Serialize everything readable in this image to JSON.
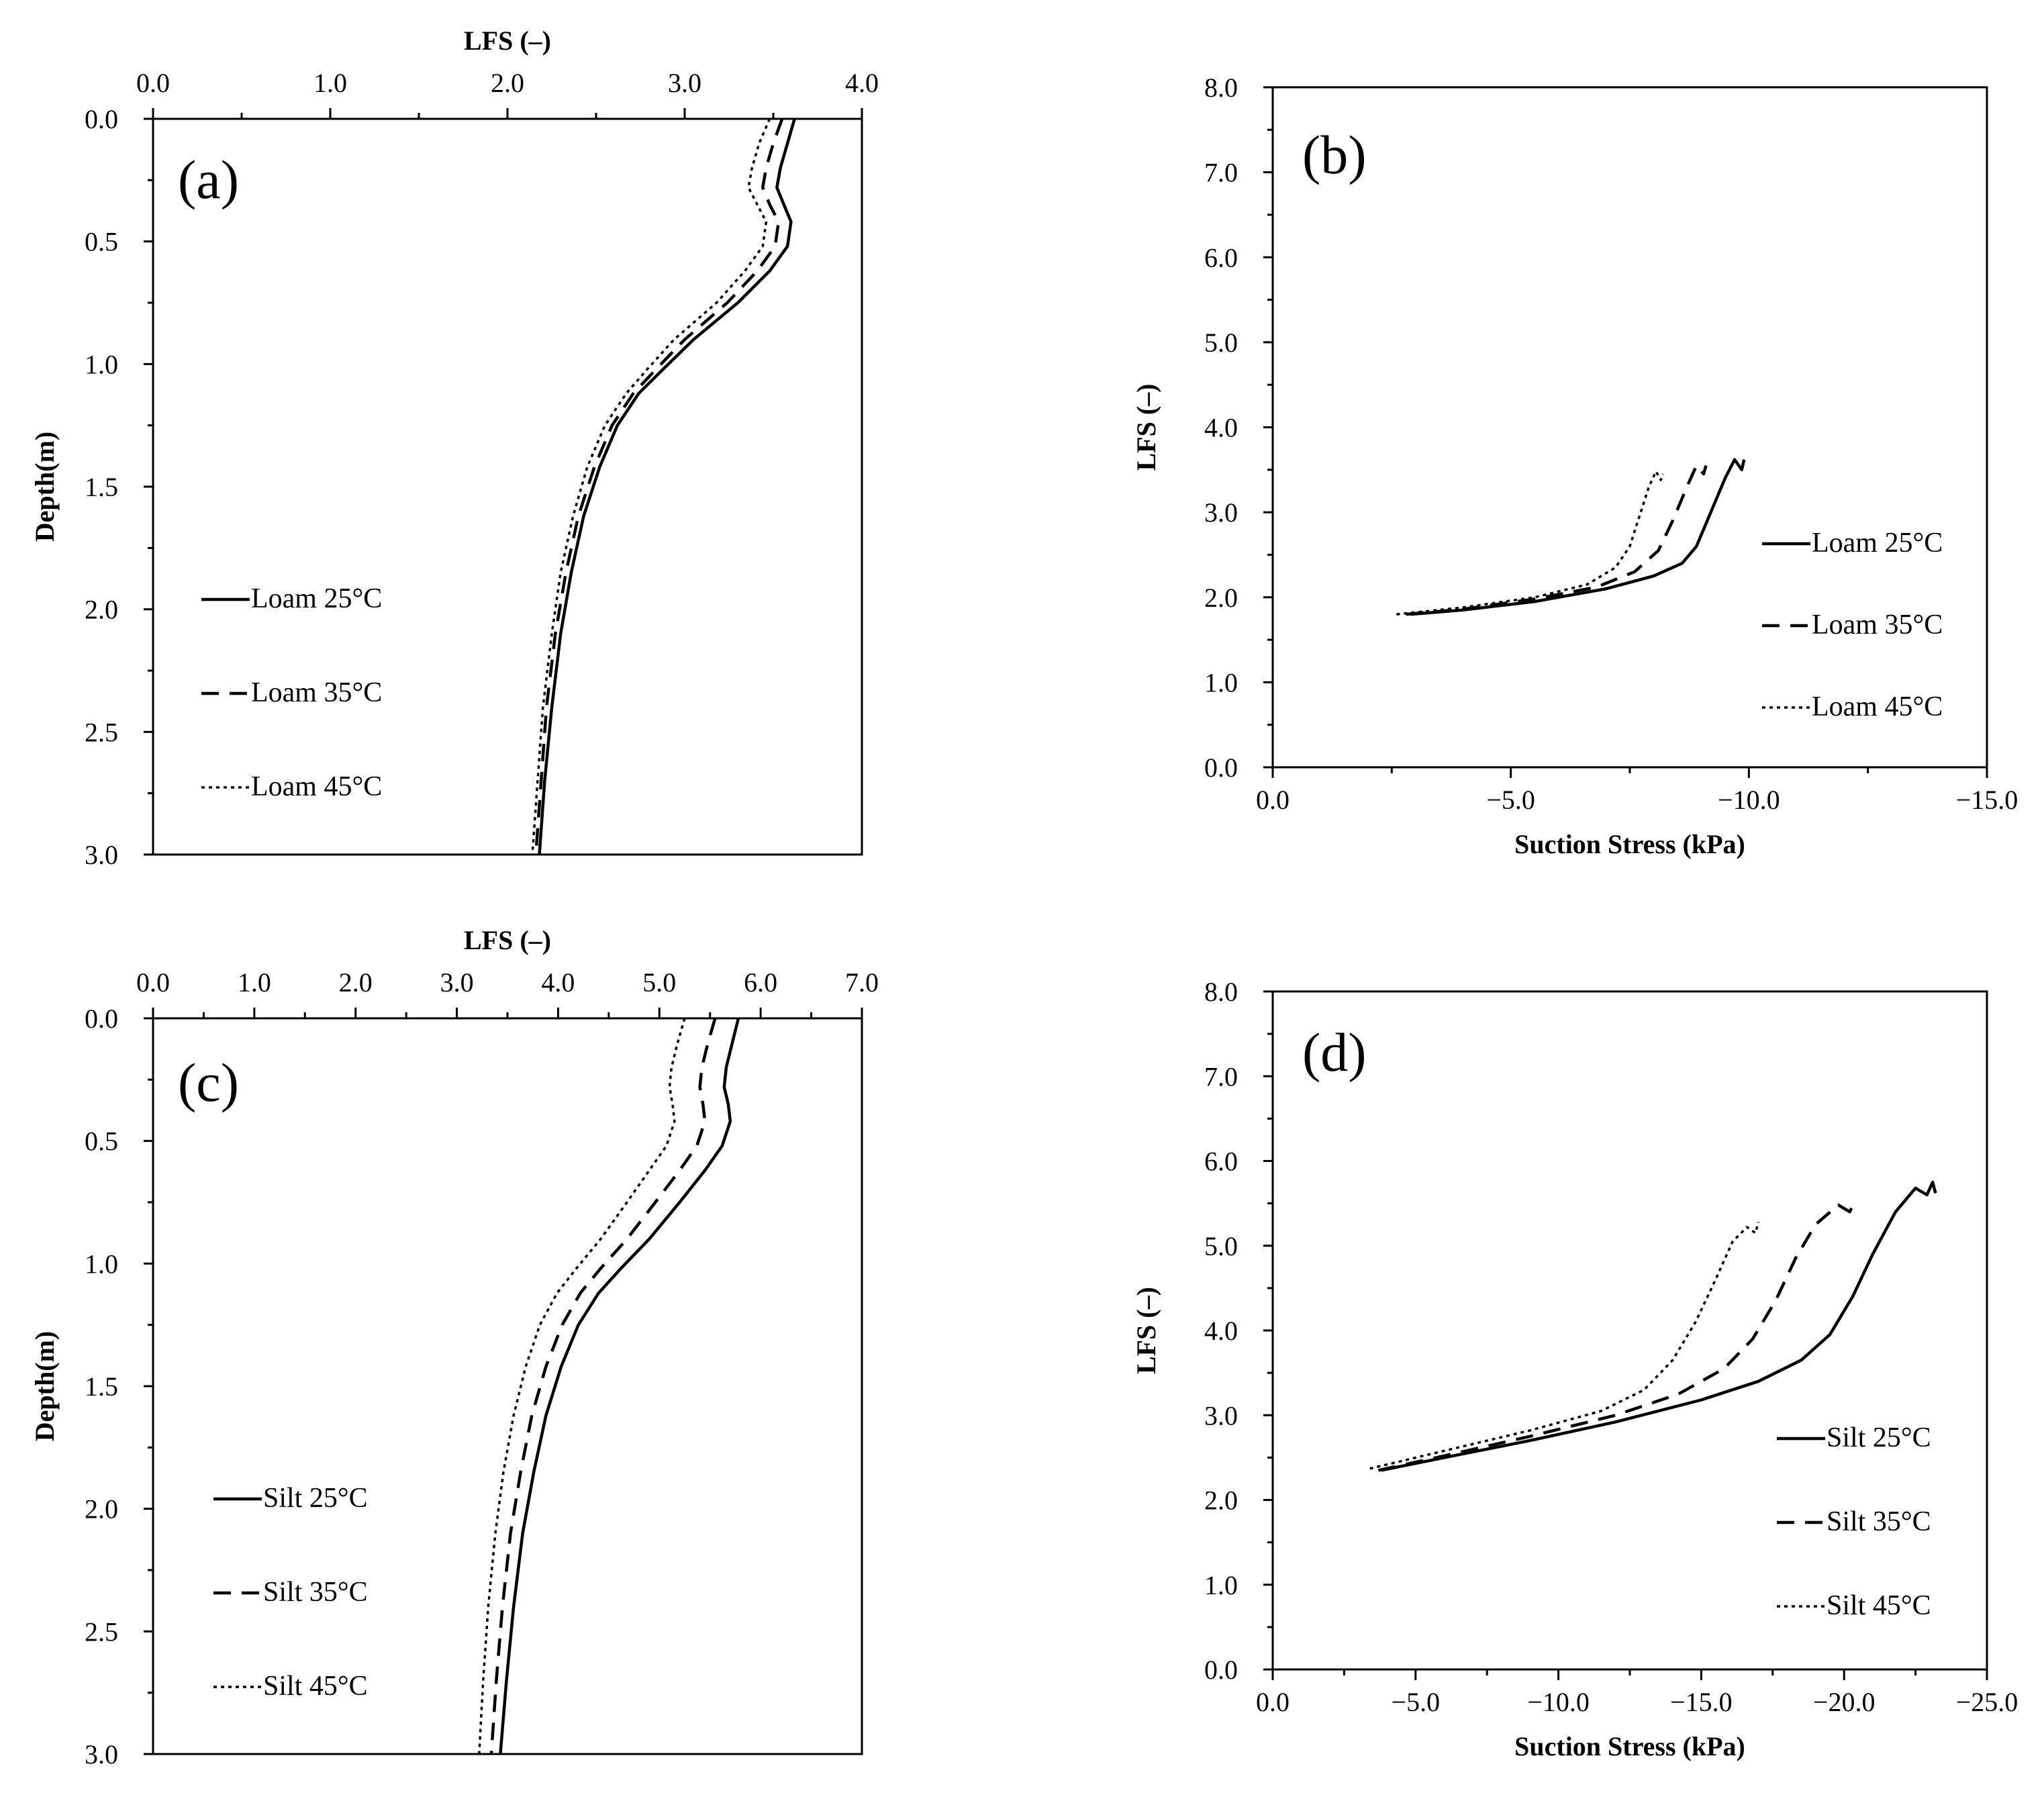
{
  "figure": {
    "chart_data": [
      {
        "id": "a",
        "type": "line",
        "panel_label": "(a)",
        "xlabel": "LFS (–)",
        "ylabel": "Depth(m)",
        "xlim": [
          0,
          4
        ],
        "ylim": [
          0,
          3
        ],
        "xticks": [
          "0.0",
          "1.0",
          "2.0",
          "3.0",
          "4.0"
        ],
        "yticks": [
          "0.0",
          "0.5",
          "1.0",
          "1.5",
          "2.0",
          "2.5",
          "3.0"
        ],
        "legend_position": "lower-left",
        "series": [
          {
            "name": "Loam 25°C",
            "style": "solid",
            "points": [
              [
                3.62,
                0
              ],
              [
                3.58,
                0.1
              ],
              [
                3.54,
                0.2
              ],
              [
                3.52,
                0.28
              ],
              [
                3.56,
                0.35
              ],
              [
                3.6,
                0.42
              ],
              [
                3.58,
                0.52
              ],
              [
                3.48,
                0.62
              ],
              [
                3.3,
                0.75
              ],
              [
                3.05,
                0.9
              ],
              [
                2.88,
                1.02
              ],
              [
                2.74,
                1.12
              ],
              [
                2.62,
                1.25
              ],
              [
                2.52,
                1.42
              ],
              [
                2.43,
                1.62
              ],
              [
                2.36,
                1.85
              ],
              [
                2.3,
                2.1
              ],
              [
                2.25,
                2.4
              ],
              [
                2.21,
                2.7
              ],
              [
                2.18,
                3.0
              ]
            ]
          },
          {
            "name": "Loam 35°C",
            "style": "dashed",
            "points": [
              [
                3.55,
                0
              ],
              [
                3.5,
                0.1
              ],
              [
                3.46,
                0.2
              ],
              [
                3.44,
                0.28
              ],
              [
                3.48,
                0.35
              ],
              [
                3.53,
                0.42
              ],
              [
                3.51,
                0.52
              ],
              [
                3.41,
                0.62
              ],
              [
                3.24,
                0.75
              ],
              [
                3.0,
                0.9
              ],
              [
                2.84,
                1.02
              ],
              [
                2.71,
                1.12
              ],
              [
                2.59,
                1.25
              ],
              [
                2.49,
                1.42
              ],
              [
                2.4,
                1.62
              ],
              [
                2.33,
                1.85
              ],
              [
                2.27,
                2.1
              ],
              [
                2.22,
                2.4
              ],
              [
                2.19,
                2.7
              ],
              [
                2.16,
                3.0
              ]
            ]
          },
          {
            "name": "Loam 45°C",
            "style": "dotted",
            "points": [
              [
                3.48,
                0
              ],
              [
                3.42,
                0.1
              ],
              [
                3.38,
                0.2
              ],
              [
                3.36,
                0.28
              ],
              [
                3.41,
                0.35
              ],
              [
                3.46,
                0.42
              ],
              [
                3.44,
                0.52
              ],
              [
                3.34,
                0.62
              ],
              [
                3.18,
                0.75
              ],
              [
                2.94,
                0.9
              ],
              [
                2.79,
                1.02
              ],
              [
                2.67,
                1.12
              ],
              [
                2.55,
                1.25
              ],
              [
                2.45,
                1.42
              ],
              [
                2.37,
                1.62
              ],
              [
                2.3,
                1.85
              ],
              [
                2.25,
                2.1
              ],
              [
                2.2,
                2.4
              ],
              [
                2.17,
                2.7
              ],
              [
                2.14,
                3.0
              ]
            ]
          }
        ]
      },
      {
        "id": "b",
        "type": "line",
        "panel_label": "(b)",
        "xlabel": "Suction Stress (kPa)",
        "ylabel": "LFS (–)",
        "xlim": [
          0,
          -15
        ],
        "ylim": [
          0,
          8
        ],
        "xticks": [
          "0.0",
          "−5.0",
          "−10.0",
          "−15.0"
        ],
        "yticks": [
          "0.0",
          "1.0",
          "2.0",
          "3.0",
          "4.0",
          "5.0",
          "6.0",
          "7.0",
          "8.0"
        ],
        "legend_position": "right",
        "series": [
          {
            "name": "Loam 25°C",
            "style": "solid",
            "points": [
              [
                -2.9,
                1.8
              ],
              [
                -4.0,
                1.85
              ],
              [
                -5.5,
                1.95
              ],
              [
                -7.0,
                2.1
              ],
              [
                -8.0,
                2.25
              ],
              [
                -8.6,
                2.4
              ],
              [
                -8.9,
                2.6
              ],
              [
                -9.2,
                3.0
              ],
              [
                -9.5,
                3.4
              ],
              [
                -9.7,
                3.62
              ],
              [
                -9.85,
                3.5
              ],
              [
                -9.9,
                3.62
              ]
            ]
          },
          {
            "name": "Loam 35°C",
            "style": "dashed",
            "points": [
              [
                -2.8,
                1.8
              ],
              [
                -4.0,
                1.86
              ],
              [
                -5.5,
                1.98
              ],
              [
                -6.8,
                2.12
              ],
              [
                -7.6,
                2.3
              ],
              [
                -8.1,
                2.55
              ],
              [
                -8.4,
                2.9
              ],
              [
                -8.7,
                3.3
              ],
              [
                -8.9,
                3.55
              ],
              [
                -9.05,
                3.45
              ],
              [
                -9.1,
                3.55
              ]
            ]
          },
          {
            "name": "Loam 45°C",
            "style": "dotted",
            "points": [
              [
                -2.6,
                1.8
              ],
              [
                -4.0,
                1.88
              ],
              [
                -5.5,
                2.0
              ],
              [
                -6.6,
                2.15
              ],
              [
                -7.2,
                2.35
              ],
              [
                -7.5,
                2.6
              ],
              [
                -7.7,
                2.95
              ],
              [
                -7.9,
                3.3
              ],
              [
                -8.05,
                3.48
              ],
              [
                -8.15,
                3.38
              ],
              [
                -8.2,
                3.45
              ]
            ]
          }
        ]
      },
      {
        "id": "c",
        "type": "line",
        "panel_label": "(c)",
        "xlabel": "LFS (–)",
        "ylabel": "Depth(m)",
        "xlim": [
          0,
          7
        ],
        "ylim": [
          0,
          3
        ],
        "xticks": [
          "0.0",
          "1.0",
          "2.0",
          "3.0",
          "4.0",
          "5.0",
          "6.0",
          "7.0"
        ],
        "yticks": [
          "0.0",
          "0.5",
          "1.0",
          "1.5",
          "2.0",
          "2.5",
          "3.0"
        ],
        "legend_position": "lower-left",
        "series": [
          {
            "name": "Silt 25°C",
            "style": "solid",
            "points": [
              [
                5.78,
                0
              ],
              [
                5.72,
                0.1
              ],
              [
                5.66,
                0.2
              ],
              [
                5.64,
                0.28
              ],
              [
                5.68,
                0.35
              ],
              [
                5.7,
                0.42
              ],
              [
                5.62,
                0.52
              ],
              [
                5.45,
                0.62
              ],
              [
                5.2,
                0.75
              ],
              [
                4.9,
                0.9
              ],
              [
                4.62,
                1.02
              ],
              [
                4.4,
                1.12
              ],
              [
                4.2,
                1.25
              ],
              [
                4.03,
                1.42
              ],
              [
                3.88,
                1.62
              ],
              [
                3.76,
                1.85
              ],
              [
                3.65,
                2.1
              ],
              [
                3.56,
                2.4
              ],
              [
                3.49,
                2.7
              ],
              [
                3.43,
                3.0
              ]
            ]
          },
          {
            "name": "Silt 35°C",
            "style": "dashed",
            "points": [
              [
                5.55,
                0
              ],
              [
                5.48,
                0.1
              ],
              [
                5.42,
                0.2
              ],
              [
                5.4,
                0.28
              ],
              [
                5.43,
                0.35
              ],
              [
                5.45,
                0.42
              ],
              [
                5.37,
                0.52
              ],
              [
                5.2,
                0.62
              ],
              [
                4.96,
                0.75
              ],
              [
                4.68,
                0.9
              ],
              [
                4.42,
                1.02
              ],
              [
                4.22,
                1.12
              ],
              [
                4.04,
                1.25
              ],
              [
                3.88,
                1.42
              ],
              [
                3.74,
                1.62
              ],
              [
                3.63,
                1.85
              ],
              [
                3.53,
                2.1
              ],
              [
                3.45,
                2.4
              ],
              [
                3.39,
                2.7
              ],
              [
                3.34,
                3.0
              ]
            ]
          },
          {
            "name": "Silt 45°C",
            "style": "dotted",
            "points": [
              [
                5.25,
                0
              ],
              [
                5.18,
                0.1
              ],
              [
                5.12,
                0.2
              ],
              [
                5.1,
                0.28
              ],
              [
                5.13,
                0.35
              ],
              [
                5.15,
                0.42
              ],
              [
                5.07,
                0.52
              ],
              [
                4.9,
                0.62
              ],
              [
                4.68,
                0.75
              ],
              [
                4.42,
                0.9
              ],
              [
                4.18,
                1.02
              ],
              [
                3.99,
                1.12
              ],
              [
                3.82,
                1.25
              ],
              [
                3.68,
                1.42
              ],
              [
                3.56,
                1.62
              ],
              [
                3.46,
                1.85
              ],
              [
                3.38,
                2.1
              ],
              [
                3.31,
                2.4
              ],
              [
                3.26,
                2.7
              ],
              [
                3.22,
                3.0
              ]
            ]
          }
        ]
      },
      {
        "id": "d",
        "type": "line",
        "panel_label": "(d)",
        "xlabel": "Suction Stress (kPa)",
        "ylabel": "LFS (–)",
        "xlim": [
          0,
          -25
        ],
        "ylim": [
          0,
          8
        ],
        "xticks": [
          "0.0",
          "−5.0",
          "−10.0",
          "−15.0",
          "−20.0",
          "−25.0"
        ],
        "yticks": [
          "0.0",
          "1.0",
          "2.0",
          "3.0",
          "4.0",
          "5.0",
          "6.0",
          "7.0",
          "8.0"
        ],
        "legend_position": "right",
        "series": [
          {
            "name": "Silt 25°C",
            "style": "solid",
            "points": [
              [
                -3.8,
                2.35
              ],
              [
                -6.0,
                2.5
              ],
              [
                -9.0,
                2.7
              ],
              [
                -12.0,
                2.92
              ],
              [
                -15.0,
                3.18
              ],
              [
                -17.0,
                3.4
              ],
              [
                -18.5,
                3.65
              ],
              [
                -19.5,
                3.95
              ],
              [
                -20.3,
                4.4
              ],
              [
                -21.0,
                4.9
              ],
              [
                -21.8,
                5.4
              ],
              [
                -22.5,
                5.68
              ],
              [
                -22.9,
                5.6
              ],
              [
                -23.1,
                5.75
              ],
              [
                -23.2,
                5.62
              ]
            ]
          },
          {
            "name": "Silt 35°C",
            "style": "dashed",
            "points": [
              [
                -3.7,
                2.35
              ],
              [
                -6.0,
                2.52
              ],
              [
                -9.0,
                2.75
              ],
              [
                -12.0,
                3.0
              ],
              [
                -14.2,
                3.25
              ],
              [
                -15.8,
                3.55
              ],
              [
                -16.8,
                3.9
              ],
              [
                -17.6,
                4.35
              ],
              [
                -18.3,
                4.85
              ],
              [
                -19.0,
                5.25
              ],
              [
                -19.8,
                5.48
              ],
              [
                -20.2,
                5.4
              ],
              [
                -20.4,
                5.55
              ]
            ]
          },
          {
            "name": "Silt 45°C",
            "style": "dotted",
            "points": [
              [
                -3.4,
                2.37
              ],
              [
                -6.0,
                2.58
              ],
              [
                -9.0,
                2.82
              ],
              [
                -11.5,
                3.05
              ],
              [
                -13.0,
                3.3
              ],
              [
                -14.0,
                3.65
              ],
              [
                -14.8,
                4.1
              ],
              [
                -15.5,
                4.6
              ],
              [
                -16.1,
                5.05
              ],
              [
                -16.6,
                5.22
              ],
              [
                -16.9,
                5.15
              ],
              [
                -17.0,
                5.28
              ]
            ]
          }
        ]
      }
    ]
  }
}
